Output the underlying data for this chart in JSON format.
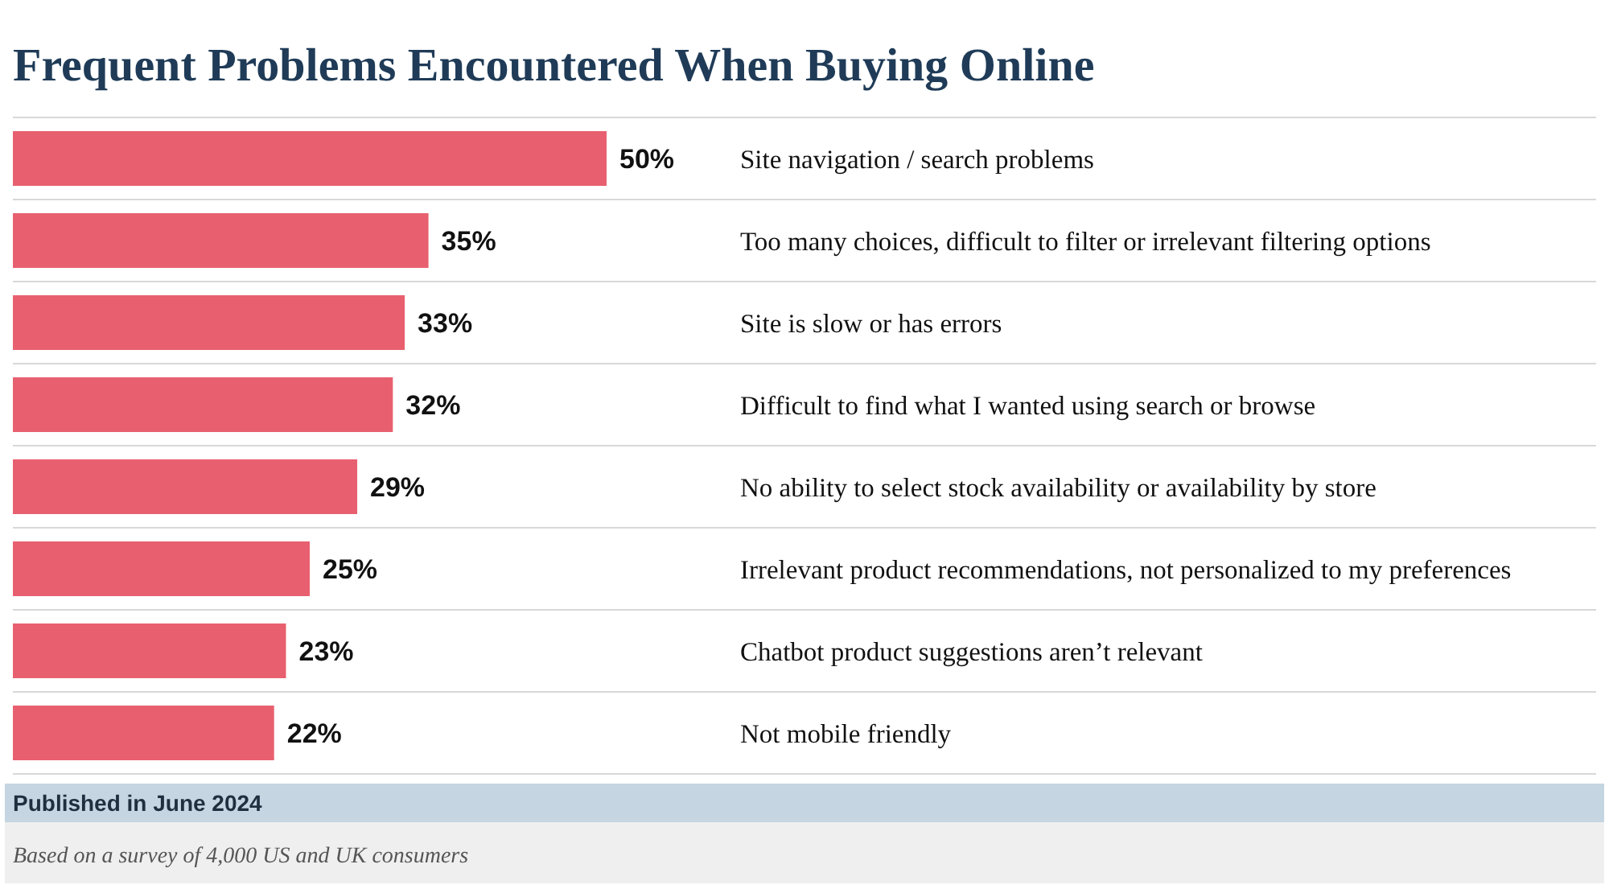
{
  "chart_data": {
    "type": "bar",
    "orientation": "horizontal",
    "title": "Frequent Problems Encountered When Buying Online",
    "categories": [
      "Site navigation / search problems",
      "Too many choices, difficult to filter or irrelevant filtering options",
      "Site is slow or has errors",
      "Difficult to find what I wanted using search or browse",
      "No ability to select stock availability or availability by store",
      "Irrelevant product recommendations, not personalized to my preferences",
      "Chatbot product suggestions aren’t relevant",
      "Not mobile friendly"
    ],
    "values": [
      50,
      35,
      33,
      32,
      29,
      25,
      23,
      22
    ],
    "value_labels": [
      "50%",
      "35%",
      "33%",
      "32%",
      "29%",
      "25%",
      "23%",
      "22%"
    ],
    "color": "#e8606f",
    "annotations": [
      "Published in June 2024",
      "Based on a survey of 4,000 US and UK consumers"
    ]
  }
}
